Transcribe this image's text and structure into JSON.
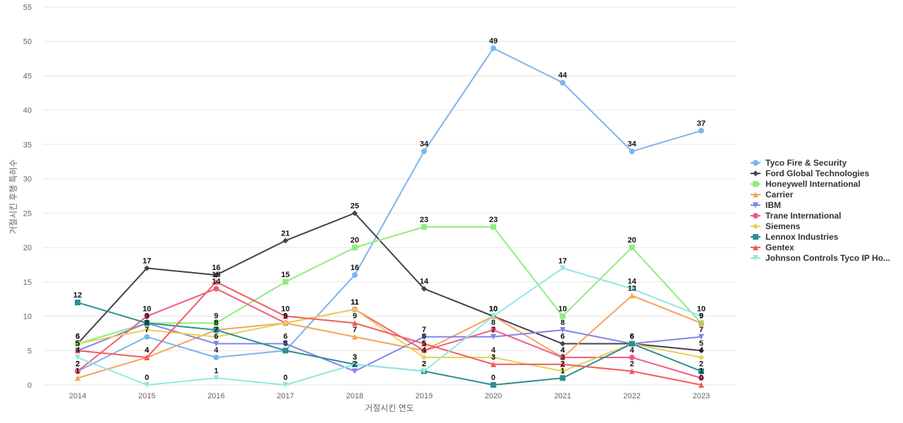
{
  "chart_data": {
    "type": "line",
    "xlabel": "거절시킨 연도",
    "ylabel": "거절시킨 후행 특허수",
    "x": [
      2014,
      2015,
      2016,
      2017,
      2018,
      2019,
      2020,
      2021,
      2022,
      2023
    ],
    "ylim": [
      0,
      55
    ],
    "yticks": [
      0,
      5,
      10,
      15,
      20,
      25,
      30,
      35,
      40,
      45,
      50,
      55
    ],
    "grid": true,
    "legend_position": "right",
    "series": [
      {
        "name": "Tyco Fire & Security",
        "color": "#7cb5ec",
        "marker": "circle",
        "values": [
          2,
          7,
          4,
          5,
          16,
          34,
          49,
          44,
          34,
          37
        ]
      },
      {
        "name": "Ford Global Technologies",
        "color": "#434348",
        "marker": "diamond",
        "values": [
          6,
          17,
          16,
          21,
          25,
          14,
          10,
          6,
          6,
          5
        ]
      },
      {
        "name": "Honeywell International",
        "color": "#90ed7d",
        "marker": "square",
        "values": [
          6,
          9,
          9,
          15,
          20,
          23,
          23,
          10,
          20,
          9
        ]
      },
      {
        "name": "Carrier",
        "color": "#f7a35c",
        "marker": "triangle",
        "values": [
          1,
          4,
          8,
          9,
          7,
          5,
          10,
          4,
          13,
          9
        ]
      },
      {
        "name": "IBM",
        "color": "#8085e9",
        "marker": "triangle-down",
        "values": [
          5,
          9,
          6,
          6,
          2,
          7,
          7,
          8,
          6,
          7
        ]
      },
      {
        "name": "Trane International",
        "color": "#f15c80",
        "marker": "circle",
        "values": [
          2,
          10,
          14,
          9,
          11,
          5,
          8,
          4,
          4,
          1
        ]
      },
      {
        "name": "Siemens",
        "color": "#e4d354",
        "marker": "diamond",
        "values": [
          6,
          8,
          7,
          9,
          11,
          4,
          4,
          2,
          6,
          4
        ]
      },
      {
        "name": "Lennox Industries",
        "color": "#2b908f",
        "marker": "square",
        "values": [
          12,
          9,
          8,
          5,
          3,
          2,
          0,
          1,
          6,
          2
        ]
      },
      {
        "name": "Gentex",
        "color": "#f45b5b",
        "marker": "triangle",
        "values": [
          5,
          4,
          15,
          10,
          9,
          6,
          3,
          3,
          2,
          0
        ]
      },
      {
        "name": "Johnson Controls Tyco IP Ho...",
        "color": "#91e8e1",
        "marker": "triangle-down",
        "values": [
          4,
          0,
          1,
          0,
          3,
          2,
          10,
          17,
          14,
          10
        ]
      }
    ]
  }
}
